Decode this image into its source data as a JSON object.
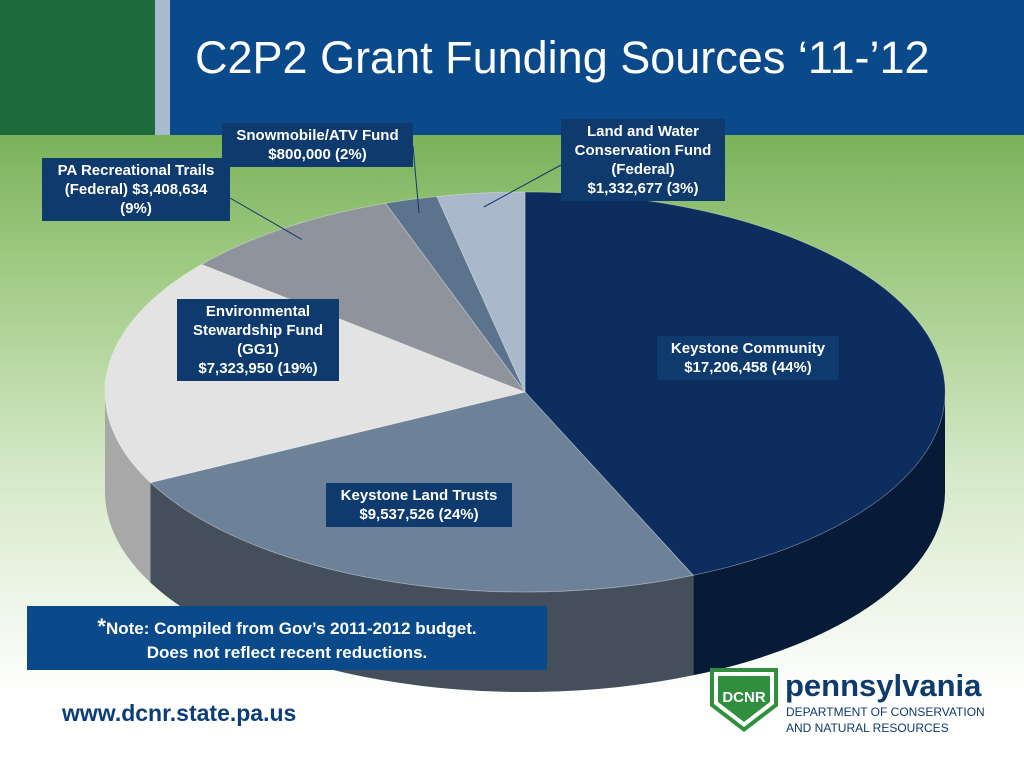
{
  "slide": {
    "title": "C2P2 Grant Funding Sources ‘11-’12",
    "note_star": "*",
    "note_line1": "Note:  Compiled from Gov’s 2011-2012 budget.",
    "note_line2": "Does not reflect recent reductions.",
    "url": "www.dcnr.state.pa.us",
    "logo_word": "pennsylvania",
    "logo_line1": "DEPARTMENT OF CONSERVATION",
    "logo_line2": "AND NATURAL RESOURCES",
    "logo_mark": "DCNR"
  },
  "chart_data": {
    "type": "pie",
    "title": "C2P2 Grant Funding Sources ‘11-’12",
    "slices": [
      {
        "name": "Keystone Community",
        "value": 17206458,
        "percent": 44,
        "color": "#0c2d5e",
        "side_color": "#071a38",
        "label_lines": [
          "Keystone Community",
          "$17,206,458  (44%)"
        ]
      },
      {
        "name": "Keystone Land Trusts",
        "value": 9537526,
        "percent": 24,
        "color": "#6d8199",
        "side_color": "#454f5c",
        "label_lines": [
          "Keystone Land Trusts",
          "$9,537,526 (24%)"
        ]
      },
      {
        "name": "Environmental Stewardship Fund (GG1)",
        "value": 7323950,
        "percent": 19,
        "color": "#e3e3e3",
        "side_color": "#a8a8a8",
        "label_lines": [
          "Environmental",
          "Stewardship Fund",
          "(GG1)",
          "$7,323,950  (19%)"
        ]
      },
      {
        "name": "PA Recreational Trails (Federal)",
        "value": 3408634,
        "percent": 9,
        "color": "#8f939b",
        "side_color": "#5e6168",
        "label_lines": [
          "PA Recreational Trails",
          "(Federal) $3,408,634",
          "(9%)"
        ]
      },
      {
        "name": "Snowmobile/ATV Fund",
        "value": 800000,
        "percent": 2,
        "color": "#5c738d",
        "side_color": "#3c4c5e",
        "label_lines": [
          "Snowmobile/ATV Fund",
          "$800,000   (2%)"
        ]
      },
      {
        "name": "Land and Water Conservation Fund (Federal)",
        "value": 1332677,
        "percent": 3,
        "color": "#a9b8cb",
        "side_color": "#76889e",
        "label_lines": [
          "Land and Water",
          "Conservation Fund",
          "(Federal)",
          "$1,332,677  (3%)"
        ]
      }
    ]
  }
}
